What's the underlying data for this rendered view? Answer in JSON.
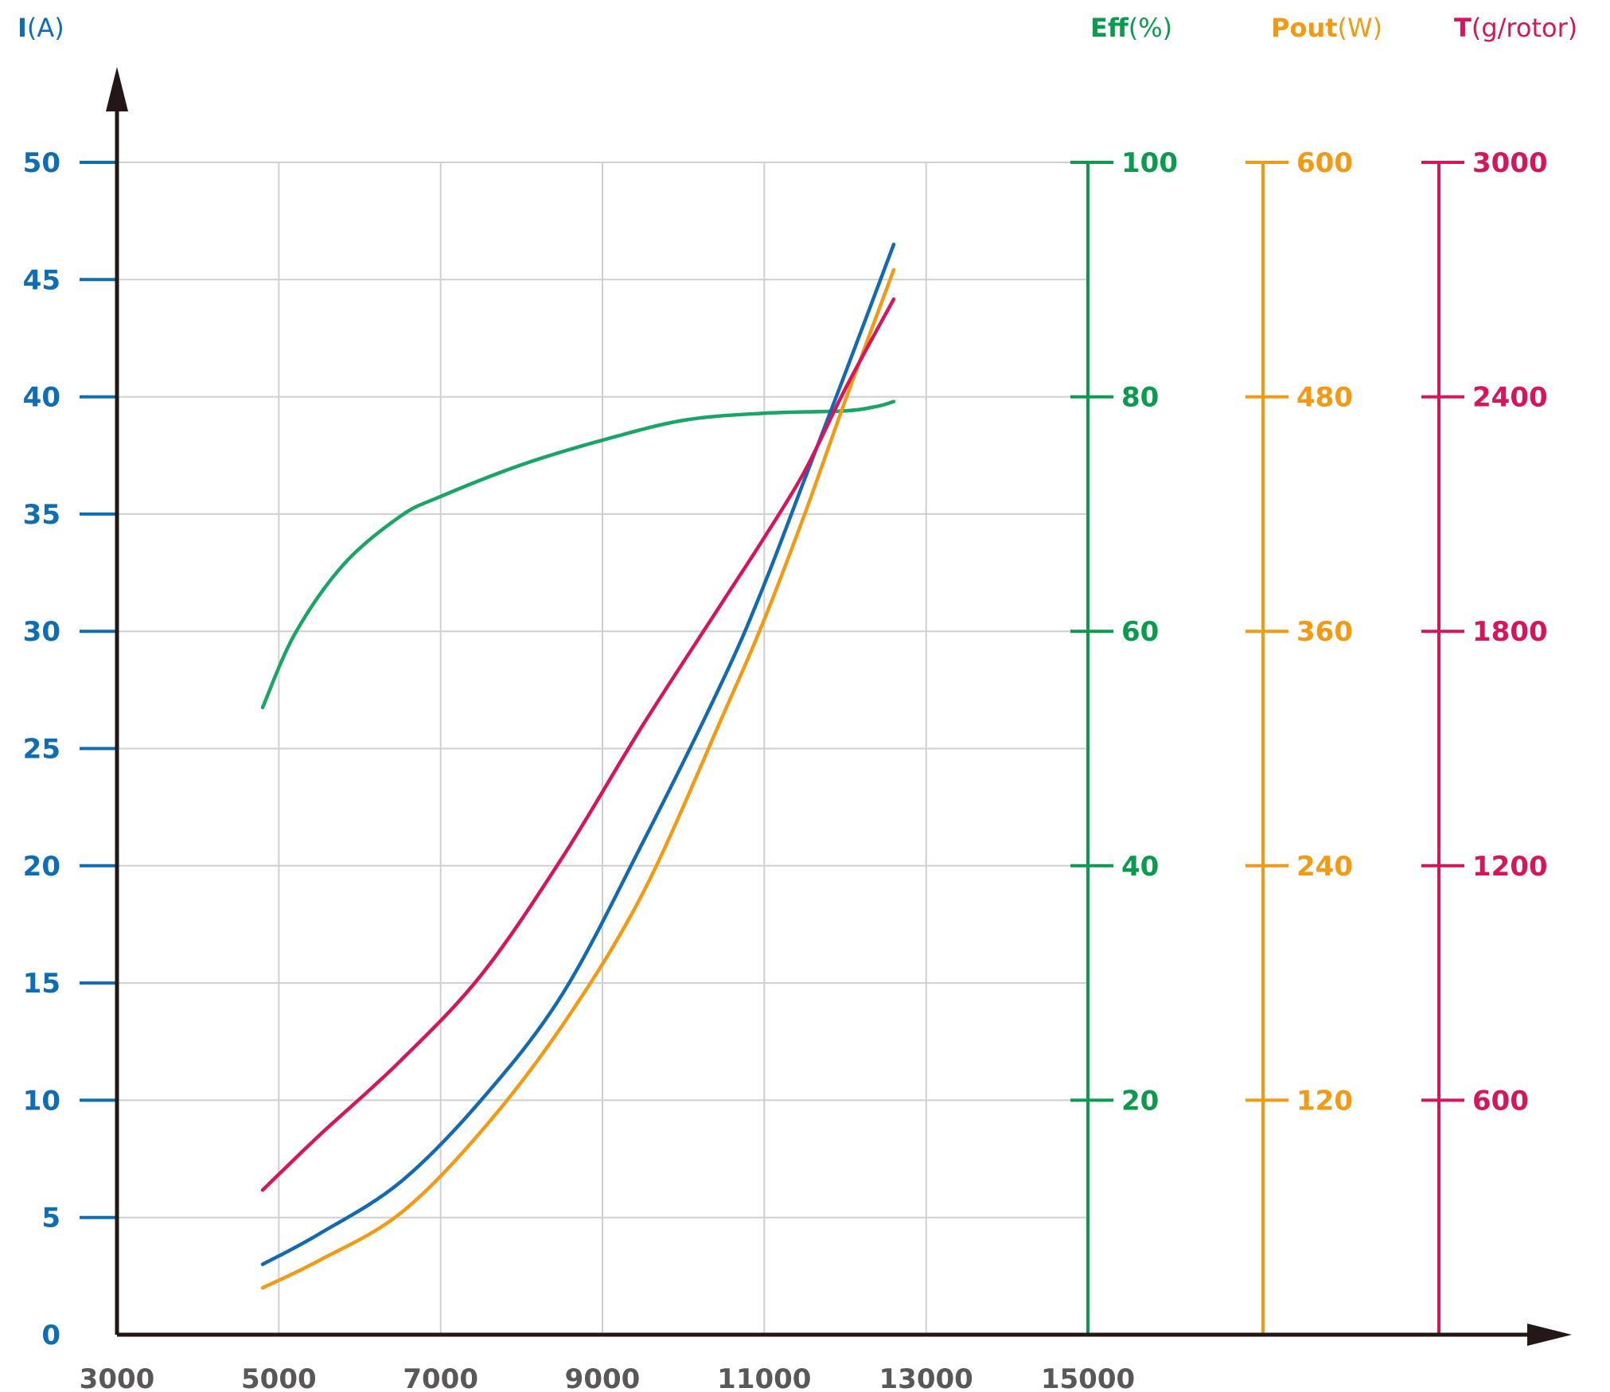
{
  "chart_data": {
    "type": "line",
    "xlabel": "",
    "xlim": [
      3000,
      15000
    ],
    "x_ticks": [
      "3000",
      "5000",
      "7000",
      "9000",
      "11000",
      "13000",
      "15000"
    ],
    "grid": true,
    "axes": [
      {
        "id": "I",
        "symbol": "I",
        "unit": "(A)",
        "color": "#0f6db3",
        "lim": [
          0,
          50
        ],
        "ticks": [
          "0",
          "5",
          "10",
          "15",
          "20",
          "25",
          "30",
          "35",
          "40",
          "45",
          "50"
        ]
      },
      {
        "id": "Eff",
        "symbol": "Eff",
        "unit": "(%)",
        "color": "#0a9b4e",
        "lim": [
          0,
          100
        ],
        "ticks": [
          "20",
          "40",
          "60",
          "80",
          "100"
        ]
      },
      {
        "id": "Pout",
        "symbol": "Pout",
        "unit": "(W)",
        "color": "#f29a13",
        "lim": [
          0,
          600
        ],
        "ticks": [
          "120",
          "240",
          "360",
          "480",
          "600"
        ]
      },
      {
        "id": "T",
        "symbol": "T",
        "unit": "(g/rotor)",
        "color": "#d6165c",
        "lim": [
          0,
          3000
        ],
        "ticks": [
          "600",
          "1200",
          "1800",
          "2400",
          "3000"
        ]
      }
    ],
    "series": [
      {
        "axis": "Eff",
        "color": "#1aa566",
        "x": [
          4800,
          5200,
          5800,
          6500,
          7000,
          8000,
          9000,
          10000,
          11000,
          12000,
          12400,
          12600
        ],
        "y": [
          53.5,
          59.8,
          65.7,
          69.8,
          71.5,
          74.2,
          76.3,
          78.0,
          78.6,
          78.8,
          79.2,
          79.6
        ]
      },
      {
        "axis": "I",
        "color": "#1569b0",
        "x": [
          4800,
          5500,
          6500,
          7500,
          8500,
          9500,
          10500,
          11000,
          11500,
          12000,
          12600
        ],
        "y": [
          3.0,
          4.3,
          6.5,
          10.0,
          14.5,
          21.0,
          28.0,
          32.0,
          36.5,
          41.0,
          46.5
        ]
      },
      {
        "axis": "Pout",
        "color": "#f29a13",
        "x": [
          4800,
          5500,
          6500,
          7500,
          8500,
          9500,
          10500,
          11000,
          11500,
          12000,
          12600
        ],
        "y": [
          24,
          38,
          62,
          104,
          158,
          226,
          318,
          366,
          420,
          478,
          545
        ]
      },
      {
        "axis": "T",
        "color": "#d6165c",
        "x": [
          4800,
          5500,
          6500,
          7500,
          8500,
          9500,
          10500,
          11000,
          11500,
          12000,
          12600
        ],
        "y": [
          370,
          510,
          700,
          920,
          1220,
          1560,
          1880,
          2040,
          2210,
          2420,
          2650
        ]
      }
    ]
  }
}
